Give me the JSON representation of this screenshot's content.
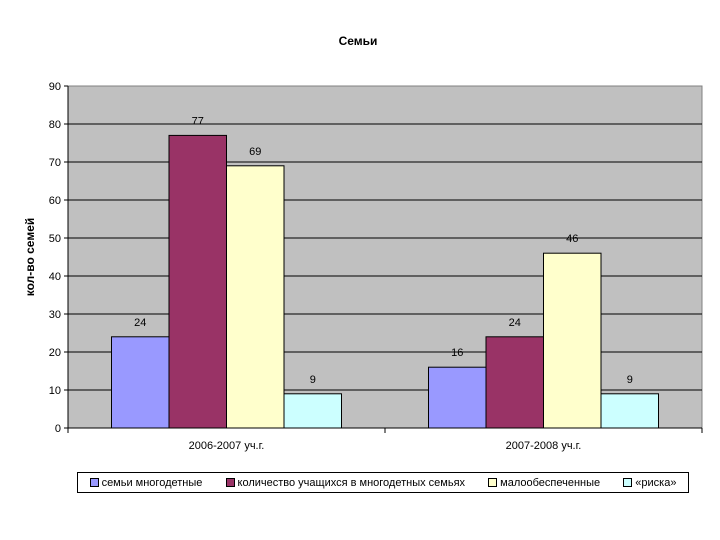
{
  "chart_data": {
    "type": "bar",
    "title": "Семьи",
    "ylabel": "кол-во семей",
    "xlabel": "",
    "categories": [
      "2006-2007 уч.г.",
      "2007-2008 уч.г."
    ],
    "ylim": [
      0,
      90
    ],
    "yticks": [
      0,
      10,
      20,
      30,
      40,
      50,
      60,
      70,
      80,
      90
    ],
    "grid": true,
    "legend_position": "bottom",
    "series": [
      {
        "name": "семьи многодетные",
        "values": [
          24,
          16
        ],
        "color": "#9999ff"
      },
      {
        "name": "количество учащихся в  многодетных семьях",
        "values": [
          77,
          24
        ],
        "color": "#993366"
      },
      {
        "name": "малообеспеченные",
        "values": [
          69,
          46
        ],
        "color": "#ffffcc"
      },
      {
        "name": "«риска»",
        "values": [
          9,
          9
        ],
        "color": "#ccffff"
      }
    ],
    "plot_background": "#c0c0c0"
  }
}
